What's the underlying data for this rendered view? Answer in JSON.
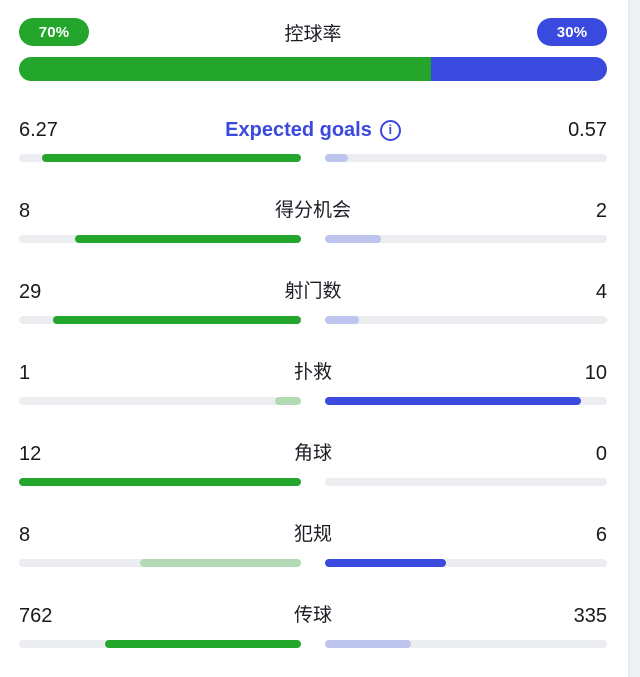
{
  "colors": {
    "home_strong": "#23a62b",
    "away_strong": "#3a49de",
    "home_light": "#b2dab4",
    "away_light": "#bdc4ee",
    "track": "#ecedf0",
    "accent_text": "#3a49de"
  },
  "possession": {
    "label": "控球率",
    "home_badge": "70%",
    "away_badge": "30%",
    "home_bar": {
      "pct": 70,
      "style": "green"
    },
    "away_bar": {
      "pct": 30,
      "style": "blue"
    }
  },
  "info_icon_glyph": "i",
  "stats": [
    {
      "label": "Expected goals",
      "home": "6.27",
      "away": "0.57",
      "home_bar": {
        "pct": 91.7,
        "style": "green"
      },
      "away_bar": {
        "pct": 8.3,
        "style": "blue-light"
      }
    },
    {
      "label": "得分机会",
      "home": "8",
      "away": "2",
      "home_bar": {
        "pct": 80,
        "style": "green"
      },
      "away_bar": {
        "pct": 20,
        "style": "blue-light"
      }
    },
    {
      "label": "射门数",
      "home": "29",
      "away": "4",
      "home_bar": {
        "pct": 87.9,
        "style": "green"
      },
      "away_bar": {
        "pct": 12.1,
        "style": "blue-light"
      }
    },
    {
      "label": "扑救",
      "home": "1",
      "away": "10",
      "home_bar": {
        "pct": 9.1,
        "style": "green-light"
      },
      "away_bar": {
        "pct": 90.9,
        "style": "blue"
      }
    },
    {
      "label": "角球",
      "home": "12",
      "away": "0",
      "home_bar": {
        "pct": 100,
        "style": "green"
      },
      "away_bar": {
        "pct": 0,
        "style": "blue-light"
      }
    },
    {
      "label": "犯规",
      "home": "8",
      "away": "6",
      "home_bar": {
        "pct": 57.1,
        "style": "green-light"
      },
      "away_bar": {
        "pct": 42.9,
        "style": "blue"
      }
    },
    {
      "label": "传球",
      "home": "762",
      "away": "335",
      "home_bar": {
        "pct": 69.5,
        "style": "green"
      },
      "away_bar": {
        "pct": 30.5,
        "style": "blue-light"
      }
    }
  ],
  "chart_data": {
    "type": "bar",
    "title": "Match statistics (home vs away)",
    "categories": [
      "控球率",
      "Expected goals",
      "得分机会",
      "射门数",
      "扑救",
      "角球",
      "犯规",
      "传球"
    ],
    "series": [
      {
        "name": "home",
        "color": "#23a62b",
        "values": [
          70,
          6.27,
          8,
          29,
          1,
          12,
          8,
          762
        ]
      },
      {
        "name": "away",
        "color": "#3a49de",
        "values": [
          30,
          0.57,
          2,
          4,
          10,
          0,
          6,
          335
        ]
      }
    ],
    "layout": "horizontal paired bars growing outward from center; stronger side saturated, weaker side tinted"
  }
}
